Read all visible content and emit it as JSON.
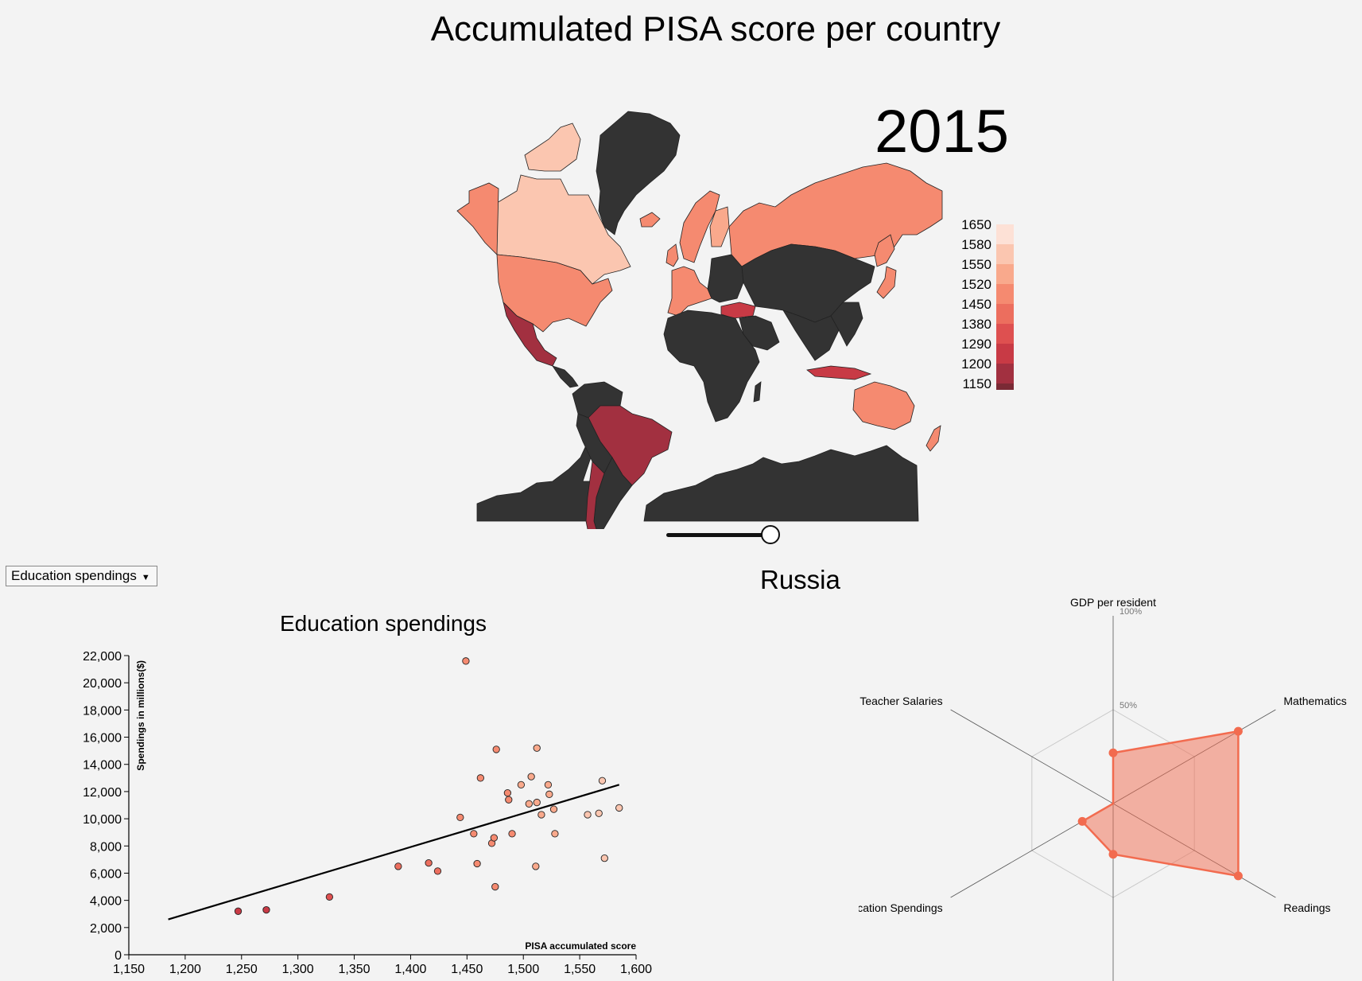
{
  "page": {
    "title": "Accumulated PISA score per country",
    "year": "2015",
    "selected_country": "Russia"
  },
  "dropdown": {
    "selected": "Education spendings"
  },
  "slider": {
    "value": 1
  },
  "colors": {
    "no_data": "#333333",
    "steps": [
      "#7a2a35",
      "#a23040",
      "#c83a45",
      "#de5050",
      "#ec6e5e",
      "#f58a70",
      "#f9a98c",
      "#fbc6b0",
      "#fde1d6"
    ],
    "radar": "#f26b4f"
  },
  "map_legend": {
    "labels": [
      "1650",
      "1580",
      "1550",
      "1520",
      "1450",
      "1380",
      "1290",
      "1200",
      "1150"
    ]
  },
  "chart_data": [
    {
      "type": "map",
      "title": "Accumulated PISA score per country",
      "year": "2015",
      "legend": [
        "1650",
        "1580",
        "1550",
        "1520",
        "1450",
        "1380",
        "1290",
        "1200",
        "1150"
      ]
    },
    {
      "type": "scatter",
      "title": "Education spendings",
      "xlabel": "PISA accumulated score",
      "ylabel": "Spendings in millions($)",
      "xlim": [
        1150,
        1600
      ],
      "ylim": [
        0,
        22000
      ],
      "xticks": [
        "1,150",
        "1,200",
        "1,250",
        "1,300",
        "1,350",
        "1,400",
        "1,450",
        "1,500",
        "1,550",
        "1,600"
      ],
      "yticks": [
        "0",
        "2,000",
        "4,000",
        "6,000",
        "8,000",
        "10,000",
        "12,000",
        "14,000",
        "16,000",
        "18,000",
        "20,000",
        "22,000"
      ],
      "points": [
        [
          1247,
          3200
        ],
        [
          1272,
          3300
        ],
        [
          1328,
          4250
        ],
        [
          1389,
          6500
        ],
        [
          1416,
          6750
        ],
        [
          1424,
          6150
        ],
        [
          1444,
          10100
        ],
        [
          1449,
          21600
        ],
        [
          1456,
          8900
        ],
        [
          1459,
          6700
        ],
        [
          1462,
          13000
        ],
        [
          1472,
          8200
        ],
        [
          1474,
          8600
        ],
        [
          1475,
          5000
        ],
        [
          1476,
          15100
        ],
        [
          1486,
          11900
        ],
        [
          1487,
          11400
        ],
        [
          1490,
          8900
        ],
        [
          1498,
          12500
        ],
        [
          1505,
          11100
        ],
        [
          1507,
          13100
        ],
        [
          1511,
          6500
        ],
        [
          1512,
          11200
        ],
        [
          1512,
          15200
        ],
        [
          1516,
          10300
        ],
        [
          1522,
          12500
        ],
        [
          1523,
          11800
        ],
        [
          1527,
          10700
        ],
        [
          1528,
          8900
        ],
        [
          1557,
          10300
        ],
        [
          1567,
          10400
        ],
        [
          1570,
          12800
        ],
        [
          1572,
          7100
        ],
        [
          1585,
          10800
        ]
      ],
      "trendline": [
        [
          1185,
          2600
        ],
        [
          1585,
          12500
        ]
      ]
    },
    {
      "type": "radar",
      "title": "Russia",
      "axes": [
        "GDP per resident",
        "Mathematics",
        "Readings",
        "",
        "Education Spendings",
        "Teacher Salaries"
      ],
      "levels": [
        "100%",
        "50%"
      ],
      "values": [
        0.27,
        0.77,
        0.77,
        0.27,
        0.19,
        0
      ]
    }
  ]
}
